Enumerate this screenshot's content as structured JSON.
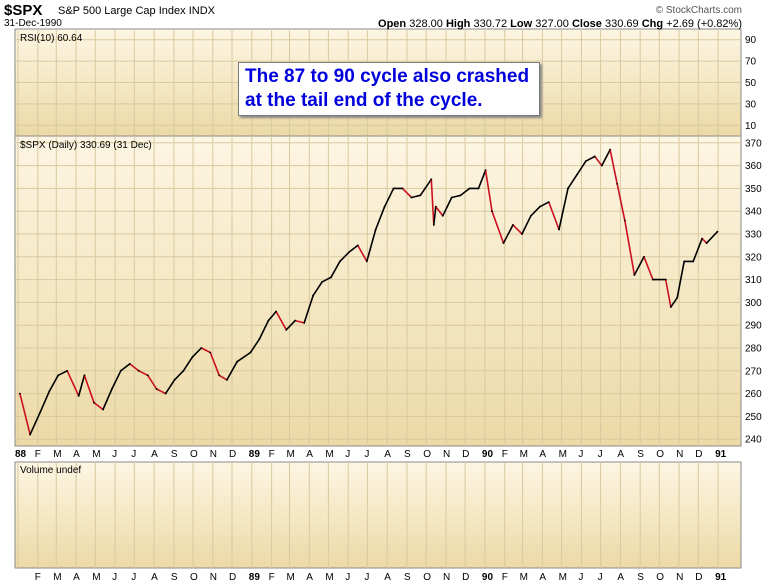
{
  "header": {
    "ticker": "$SPX",
    "description": "S&P 500 Large Cap Index",
    "exchange": "INDX",
    "date": "31-Dec-1990",
    "copyright": "© StockCharts.com",
    "ohlc": {
      "open_label": "Open",
      "open": "328.00",
      "high_label": "High",
      "high": "330.72",
      "low_label": "Low",
      "low": "327.00",
      "close_label": "Close",
      "close": "330.69",
      "chg_label": "Chg",
      "chg": "+2.69 (+0.82%)"
    }
  },
  "panels": {
    "rsi_label": "RSI(10) 60.64",
    "price_label": "$SPX (Daily) 330.69 (31 Dec)",
    "volume_label": "Volume undef"
  },
  "annotation": {
    "line1": "The 87 to 90 cycle also crashed",
    "line2": "at the tail end of the cycle."
  },
  "colors": {
    "up_bar": "#000000",
    "down_bar": "#cc1020",
    "panel_gradient_top": "#fdf6e3",
    "panel_gradient_bottom": "#ecd9a6",
    "note_text": "#0000dd"
  },
  "chart_data": {
    "type": "line",
    "series": [
      {
        "name": "$SPX (Daily)",
        "x": [
          "1988-01-04",
          "1988-01-20",
          "1988-02-05",
          "1988-02-19",
          "1988-03-04",
          "1988-03-18",
          "1988-04-05",
          "1988-04-14",
          "1988-04-29",
          "1988-05-13",
          "1988-05-27",
          "1988-06-10",
          "1988-06-24",
          "1988-07-08",
          "1988-07-22",
          "1988-08-05",
          "1988-08-19",
          "1988-09-02",
          "1988-09-16",
          "1988-09-30",
          "1988-10-14",
          "1988-10-28",
          "1988-11-11",
          "1988-11-23",
          "1988-12-09",
          "1988-12-30",
          "1989-01-13",
          "1989-01-27",
          "1989-02-08",
          "1989-02-24",
          "1989-03-10",
          "1989-03-24",
          "1989-04-07",
          "1989-04-21",
          "1989-05-05",
          "1989-05-19",
          "1989-06-02",
          "1989-06-16",
          "1989-06-30",
          "1989-07-14",
          "1989-07-28",
          "1989-08-11",
          "1989-08-25",
          "1989-09-08",
          "1989-09-22",
          "1989-10-09",
          "1989-10-13",
          "1989-10-16",
          "1989-10-27",
          "1989-11-10",
          "1989-11-24",
          "1989-12-08",
          "1989-12-22",
          "1990-01-02",
          "1990-01-12",
          "1990-01-30",
          "1990-02-14",
          "1990-02-28",
          "1990-03-14",
          "1990-03-28",
          "1990-04-11",
          "1990-04-27",
          "1990-05-11",
          "1990-05-25",
          "1990-06-08",
          "1990-06-22",
          "1990-07-03",
          "1990-07-16",
          "1990-07-27",
          "1990-08-08",
          "1990-08-23",
          "1990-09-07",
          "1990-09-21",
          "1990-10-11",
          "1990-10-19",
          "1990-10-29",
          "1990-11-09",
          "1990-11-23",
          "1990-12-07",
          "1990-12-14",
          "1990-12-31"
        ],
        "values": [
          260,
          242,
          252,
          261,
          268,
          270,
          259,
          268,
          256,
          253,
          262,
          270,
          273,
          270,
          268,
          262,
          260,
          266,
          270,
          276,
          280,
          278,
          268,
          266,
          274,
          278,
          284,
          292,
          296,
          288,
          292,
          291,
          303,
          309,
          311,
          318,
          322,
          325,
          318,
          332,
          342,
          350,
          350,
          346,
          347,
          354,
          334,
          342,
          338,
          346,
          347,
          350,
          350,
          358,
          340,
          326,
          334,
          330,
          338,
          342,
          344,
          332,
          350,
          356,
          362,
          364,
          360,
          367,
          352,
          336,
          312,
          320,
          310,
          310,
          298,
          302,
          318,
          318,
          328,
          326,
          331
        ]
      }
    ],
    "ylim": [
      237,
      373
    ],
    "y_ticks": [
      240,
      250,
      260,
      270,
      280,
      290,
      300,
      310,
      320,
      330,
      340,
      350,
      360,
      370
    ],
    "rsi": {
      "name": "RSI(10)",
      "value": 60.64,
      "ylim": [
        0,
        100
      ],
      "y_ticks": [
        10,
        30,
        50,
        70,
        90
      ]
    },
    "x_tick_labels": [
      "88",
      "F",
      "M",
      "A",
      "M",
      "J",
      "J",
      "A",
      "S",
      "O",
      "N",
      "D",
      "89",
      "F",
      "M",
      "A",
      "M",
      "J",
      "J",
      "A",
      "S",
      "O",
      "N",
      "D",
      "90",
      "F",
      "M",
      "A",
      "M",
      "J",
      "J",
      "A",
      "S",
      "O",
      "N",
      "D",
      "91"
    ],
    "x_tick_dates": [
      "1988-01-01",
      "1988-02-01",
      "1988-03-01",
      "1988-04-01",
      "1988-05-01",
      "1988-06-01",
      "1988-07-01",
      "1988-08-01",
      "1988-09-01",
      "1988-10-01",
      "1988-11-01",
      "1988-12-01",
      "1989-01-01",
      "1989-02-01",
      "1989-03-01",
      "1989-04-01",
      "1989-05-01",
      "1989-06-01",
      "1989-07-01",
      "1989-08-01",
      "1989-09-01",
      "1989-10-01",
      "1989-11-01",
      "1989-12-01",
      "1990-01-01",
      "1990-02-01",
      "1990-03-01",
      "1990-04-01",
      "1990-05-01",
      "1990-06-01",
      "1990-07-01",
      "1990-08-01",
      "1990-09-01",
      "1990-10-01",
      "1990-11-01",
      "1990-12-01",
      "1991-01-01"
    ],
    "xlim": [
      "1988-01-01",
      "1991-01-04"
    ],
    "grid": true
  }
}
